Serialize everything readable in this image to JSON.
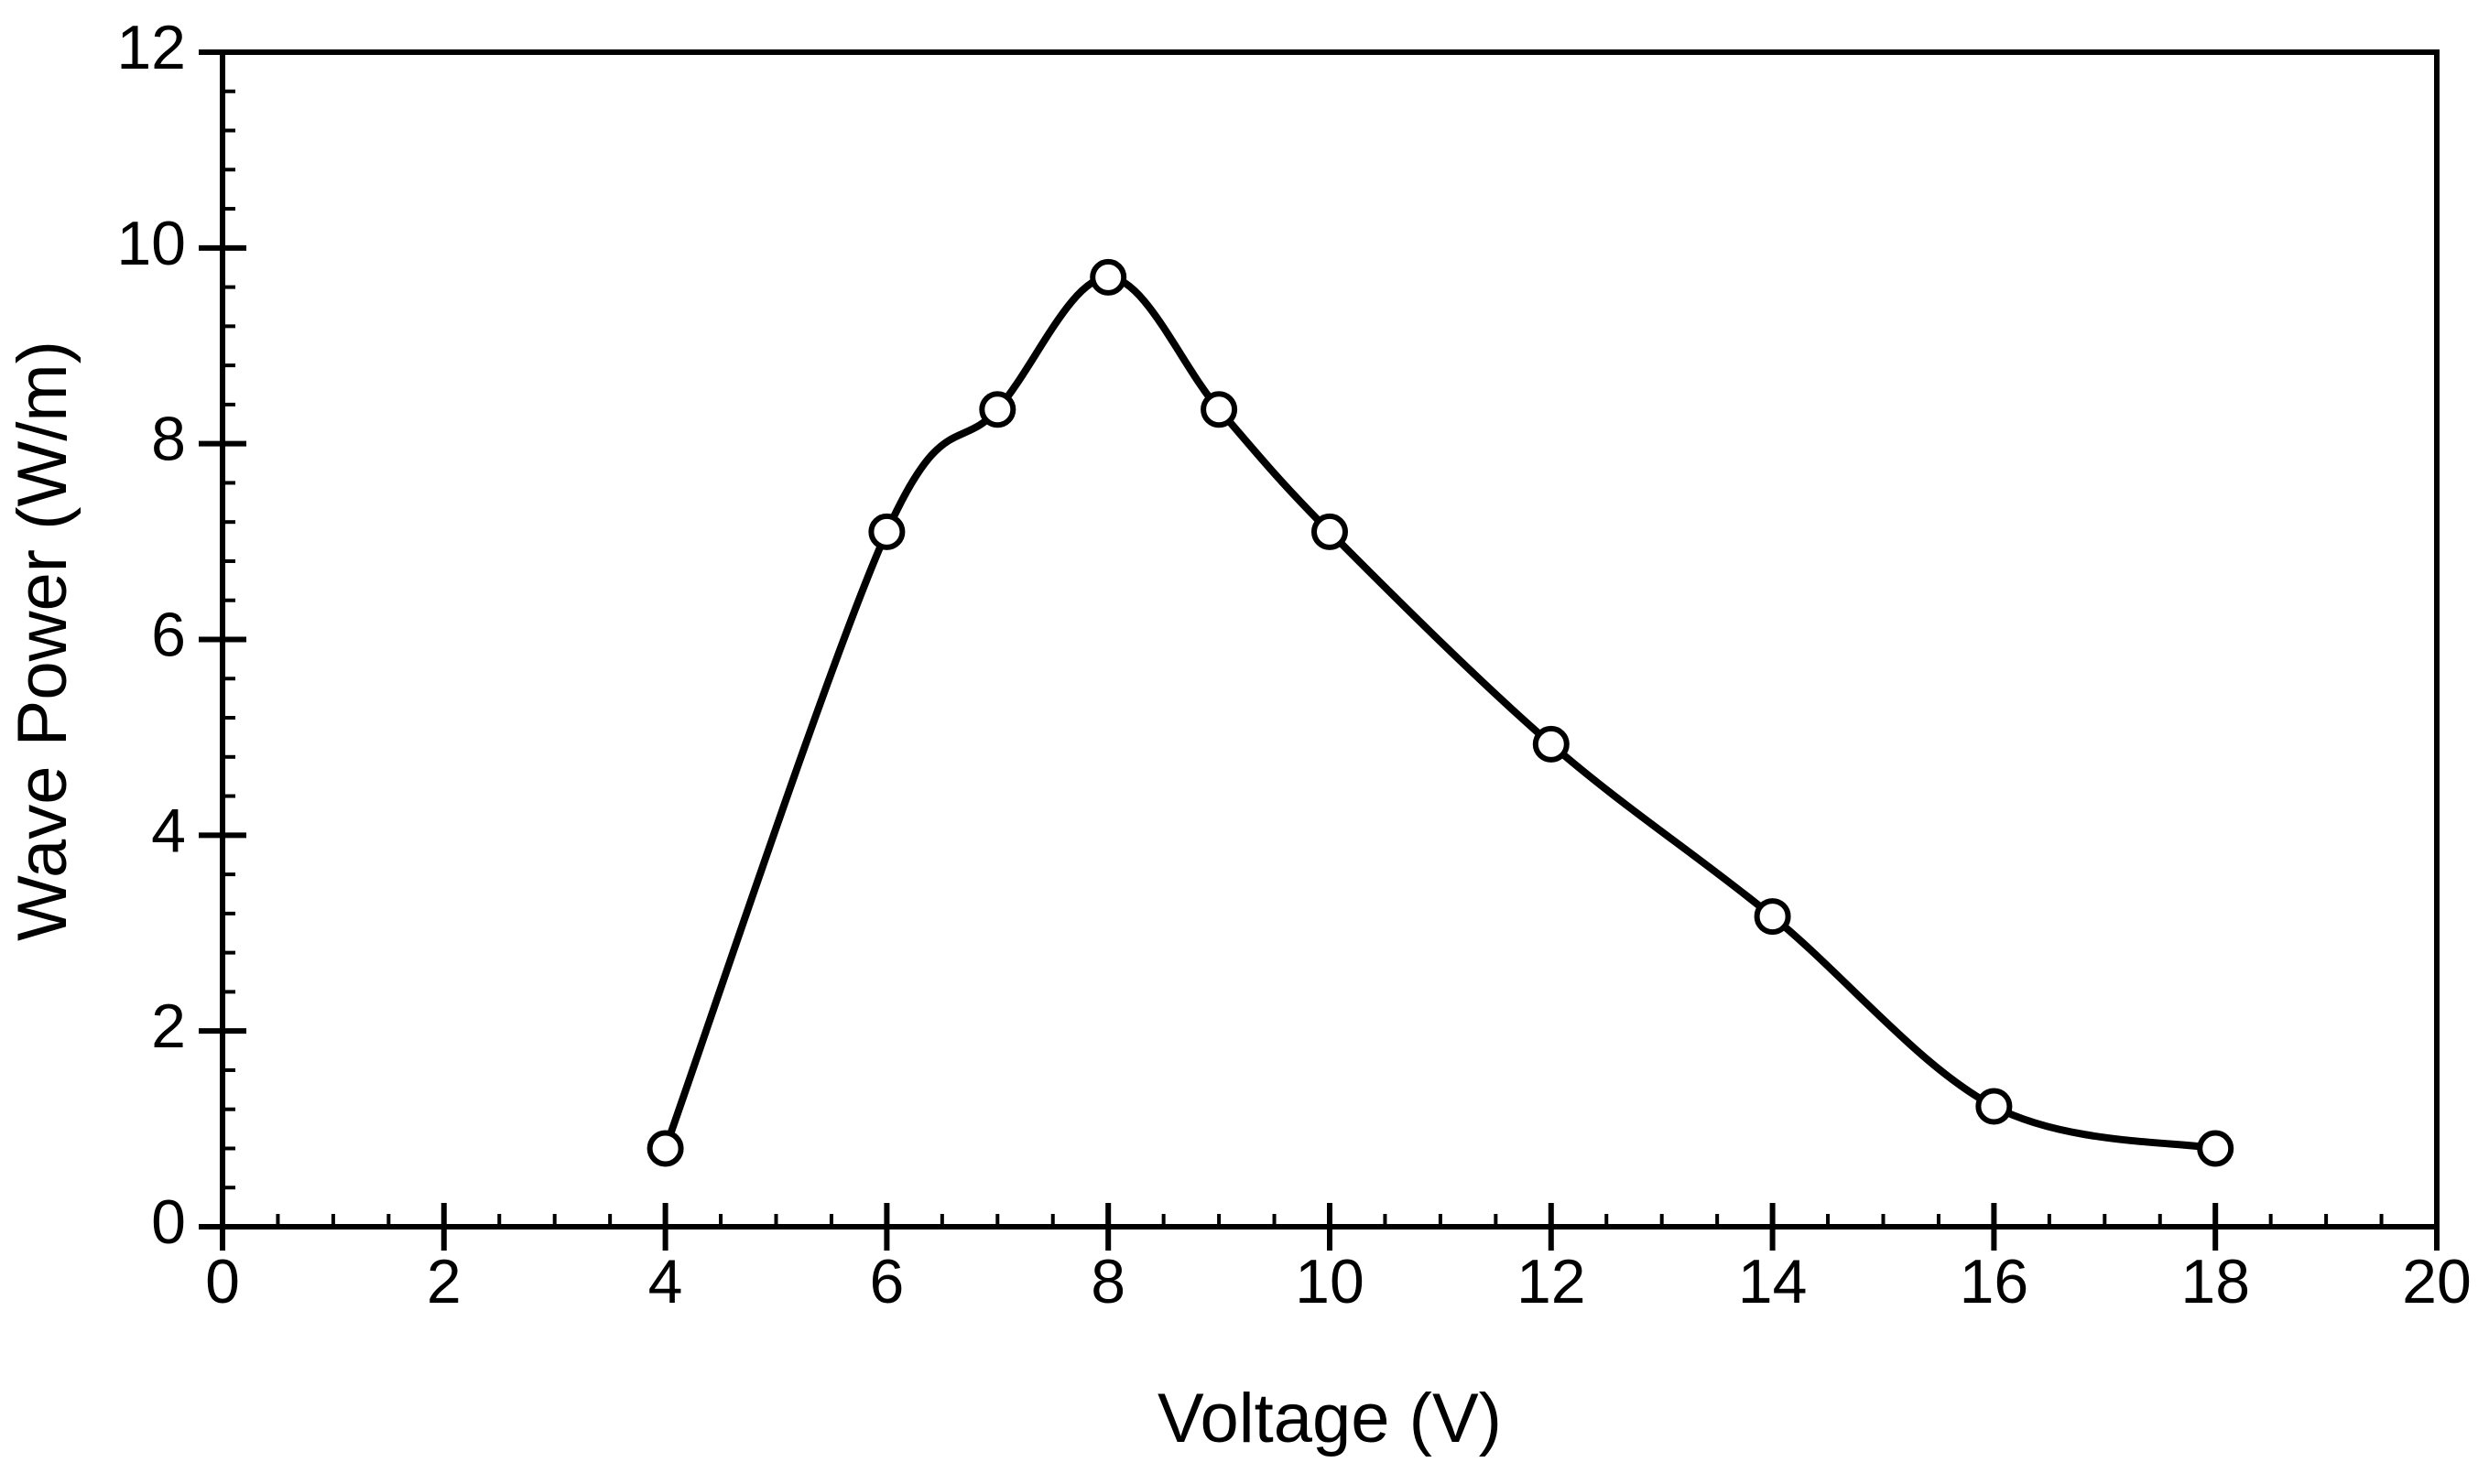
{
  "chart_data": {
    "type": "line",
    "x_label": "Voltage (V)",
    "y_label": "Wave Power (W/m)",
    "series": [
      {
        "color": "#000000",
        "x": [
          4,
          6,
          7,
          8,
          9,
          10,
          12,
          14,
          16,
          18
        ],
        "values": [
          0.8,
          7.1,
          8.35,
          9.7,
          8.35,
          7.1,
          4.93,
          3.17,
          1.23,
          0.8
        ]
      }
    ],
    "xlim": [
      0,
      20
    ],
    "xticks": [
      0,
      2,
      4,
      6,
      8,
      10,
      12,
      14,
      16,
      18,
      20
    ],
    "ylim": [
      0,
      12
    ],
    "yticks": [
      0,
      2,
      4,
      6,
      8,
      10,
      12
    ],
    "grid": false,
    "smooth": true,
    "markers": "open-circle"
  }
}
